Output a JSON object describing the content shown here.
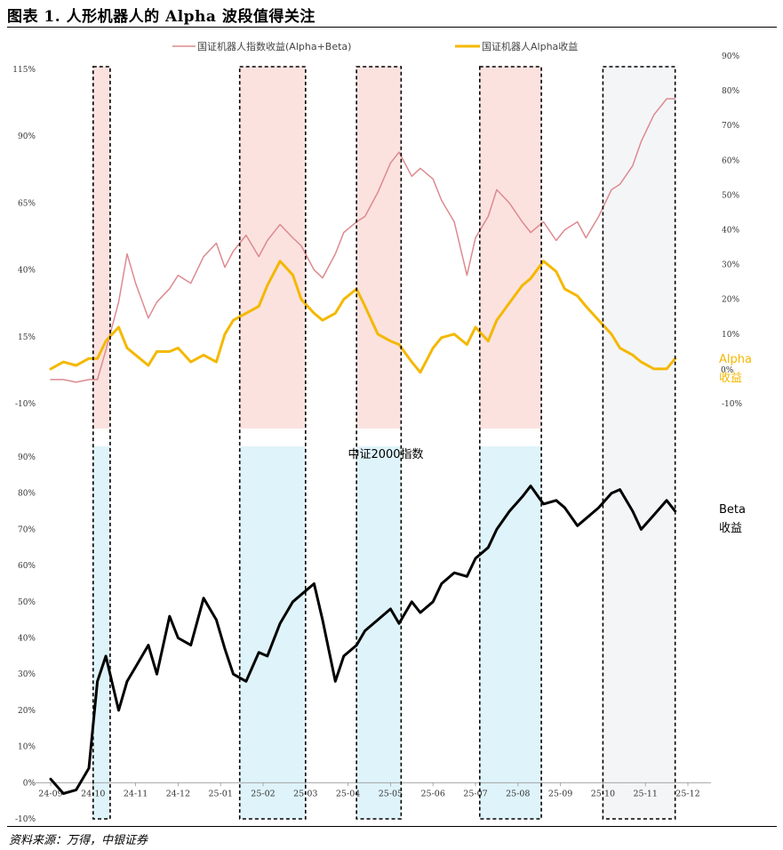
{
  "title": "图表 1. 人形机器人的 Alpha 波段值得关注",
  "source": "资料来源：万得，中银证券",
  "colors": {
    "index_line": "#dd8a8f",
    "alpha_line": "#f4b800",
    "beta_line": "#000000",
    "shade_pink": "#fbe2df",
    "shade_blue": "#dff3fa",
    "shade_gray": "#f4f5f7",
    "alpha_label": "#f4b800"
  },
  "chart_data": [
    {
      "type": "line",
      "panel": "top",
      "x_ticks": [
        "24-09",
        "24-10",
        "24-11",
        "24-12",
        "25-01",
        "25-02",
        "25-03",
        "25-04",
        "25-05",
        "25-06",
        "25-07",
        "25-08",
        "25-09",
        "25-10",
        "25-11",
        "25-12"
      ],
      "left_axis": {
        "ticks": [
          "115%",
          "90%",
          "65%",
          "40%",
          "15%",
          "-10%"
        ],
        "ylim": [
          -10,
          115
        ]
      },
      "right_axis": {
        "ticks": [
          "90%",
          "80%",
          "70%",
          "60%",
          "50%",
          "40%",
          "30%",
          "20%",
          "10%",
          "0%",
          "-10%"
        ],
        "ylim": [
          -10,
          90
        ]
      },
      "series": [
        {
          "name": "国证机器人指数收益(Alpha+Beta)",
          "axis": "left",
          "x": [
            0,
            0.3,
            0.6,
            0.9,
            1.1,
            1.3,
            1.6,
            1.8,
            2.0,
            2.3,
            2.5,
            2.8,
            3.0,
            3.3,
            3.6,
            3.9,
            4.1,
            4.3,
            4.6,
            4.9,
            5.1,
            5.4,
            5.7,
            5.9,
            6.2,
            6.4,
            6.7,
            6.9,
            7.2,
            7.4,
            7.7,
            8.0,
            8.2,
            8.5,
            8.7,
            9.0,
            9.2,
            9.5,
            9.8,
            10.0,
            10.3,
            10.5,
            10.8,
            11.1,
            11.3,
            11.6,
            11.9,
            12.1,
            12.4,
            12.6,
            12.9,
            13.2,
            13.4,
            13.7,
            13.9,
            14.2,
            14.5,
            14.7
          ],
          "values": [
            -1,
            -1,
            -2,
            -1,
            -1,
            10,
            28,
            46,
            35,
            22,
            28,
            33,
            38,
            35,
            45,
            50,
            41,
            47,
            53,
            45,
            51,
            57,
            52,
            49,
            40,
            37,
            46,
            54,
            58,
            60,
            69,
            80,
            84,
            75,
            78,
            74,
            66,
            58,
            38,
            52,
            60,
            70,
            65,
            58,
            54,
            58,
            51,
            55,
            58,
            52,
            60,
            70,
            72,
            79,
            88,
            98,
            104,
            104
          ]
        },
        {
          "name": "国证机器人Alpha收益",
          "axis": "right",
          "x": [
            0,
            0.3,
            0.6,
            0.9,
            1.1,
            1.3,
            1.6,
            1.8,
            2.0,
            2.3,
            2.5,
            2.8,
            3.0,
            3.3,
            3.6,
            3.9,
            4.1,
            4.3,
            4.6,
            4.9,
            5.1,
            5.4,
            5.7,
            5.9,
            6.2,
            6.4,
            6.7,
            6.9,
            7.2,
            7.4,
            7.7,
            8.0,
            8.2,
            8.5,
            8.7,
            9.0,
            9.2,
            9.5,
            9.8,
            10.0,
            10.3,
            10.5,
            10.8,
            11.1,
            11.3,
            11.6,
            11.9,
            12.1,
            12.4,
            12.6,
            12.9,
            13.2,
            13.4,
            13.7,
            13.9,
            14.2,
            14.5,
            14.7
          ],
          "values": [
            0,
            2,
            1,
            3,
            3,
            8,
            12,
            6,
            4,
            1,
            5,
            5,
            6,
            2,
            4,
            2,
            10,
            14,
            16,
            18,
            24,
            31,
            27,
            20,
            16,
            14,
            16,
            20,
            23,
            18,
            10,
            8,
            7,
            2,
            -1,
            6,
            9,
            10,
            7,
            12,
            8,
            14,
            19,
            24,
            26,
            31,
            28,
            23,
            21,
            18,
            14,
            10,
            6,
            4,
            2,
            0,
            0,
            3
          ]
        },
        {
          "name": "中证2000指数 (Beta收益)",
          "axis": "bottom-left",
          "x": [
            0,
            0.3,
            0.6,
            0.9,
            1.1,
            1.3,
            1.6,
            1.8,
            2.0,
            2.3,
            2.5,
            2.8,
            3.0,
            3.3,
            3.6,
            3.9,
            4.1,
            4.3,
            4.6,
            4.9,
            5.1,
            5.4,
            5.7,
            5.9,
            6.2,
            6.4,
            6.7,
            6.9,
            7.2,
            7.4,
            7.7,
            8.0,
            8.2,
            8.5,
            8.7,
            9.0,
            9.2,
            9.5,
            9.8,
            10.0,
            10.3,
            10.5,
            10.8,
            11.1,
            11.3,
            11.6,
            11.9,
            12.1,
            12.4,
            12.6,
            12.9,
            13.2,
            13.4,
            13.7,
            13.9,
            14.2,
            14.5,
            14.7
          ],
          "values": [
            1,
            -3,
            -2,
            4,
            28,
            35,
            20,
            28,
            32,
            38,
            30,
            46,
            40,
            38,
            51,
            45,
            37,
            30,
            28,
            36,
            35,
            44,
            50,
            52,
            55,
            45,
            28,
            35,
            38,
            42,
            45,
            48,
            44,
            50,
            47,
            50,
            55,
            58,
            57,
            62,
            65,
            70,
            75,
            79,
            82,
            77,
            78,
            76,
            71,
            73,
            76,
            80,
            81,
            75,
            70,
            74,
            78,
            75
          ]
        }
      ],
      "bottom_axis": {
        "ticks": [
          "90%",
          "80%",
          "70%",
          "60%",
          "50%",
          "40%",
          "30%",
          "20%",
          "10%",
          "0%",
          "-10%"
        ],
        "ylim": [
          -10,
          90
        ]
      },
      "annotations": {
        "alpha_label": "Alpha\n收益",
        "beta_label": "Beta\n收益",
        "index_label": "中证2000指数"
      },
      "highlight_periods": [
        {
          "start": 1.0,
          "end": 1.4,
          "type": "pink-blue"
        },
        {
          "start": 4.45,
          "end": 6.0,
          "type": "pink-blue"
        },
        {
          "start": 7.2,
          "end": 8.25,
          "type": "pink-blue"
        },
        {
          "start": 10.1,
          "end": 11.55,
          "type": "pink-blue"
        },
        {
          "start": 13.0,
          "end": 14.7,
          "type": "gray"
        }
      ]
    }
  ]
}
